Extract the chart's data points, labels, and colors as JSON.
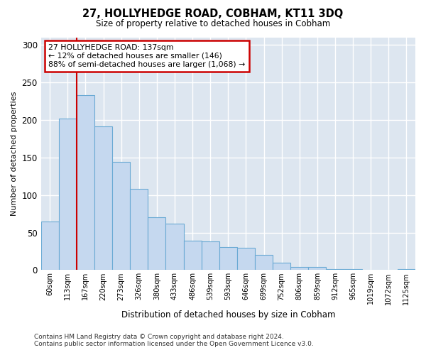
{
  "title": "27, HOLLYHEDGE ROAD, COBHAM, KT11 3DQ",
  "subtitle": "Size of property relative to detached houses in Cobham",
  "xlabel": "Distribution of detached houses by size in Cobham",
  "ylabel": "Number of detached properties",
  "bin_labels": [
    "60sqm",
    "113sqm",
    "167sqm",
    "220sqm",
    "273sqm",
    "326sqm",
    "380sqm",
    "433sqm",
    "486sqm",
    "539sqm",
    "593sqm",
    "646sqm",
    "699sqm",
    "752sqm",
    "806sqm",
    "859sqm",
    "912sqm",
    "965sqm",
    "1019sqm",
    "1072sqm",
    "1125sqm"
  ],
  "bar_heights": [
    65,
    202,
    233,
    191,
    144,
    108,
    70,
    62,
    39,
    38,
    31,
    30,
    20,
    10,
    4,
    4,
    1,
    1,
    0,
    0,
    1
  ],
  "bar_color": "#c5d8ef",
  "bar_edgecolor": "#6aaad4",
  "ylim": [
    0,
    310
  ],
  "yticks": [
    0,
    50,
    100,
    150,
    200,
    250,
    300
  ],
  "red_line_x": 1.5,
  "marker_label": "27 HOLLYHEDGE ROAD: 137sqm",
  "annotation_line1": "← 12% of detached houses are smaller (146)",
  "annotation_line2": "88% of semi-detached houses are larger (1,068) →",
  "annotation_box_color": "#ffffff",
  "annotation_box_edgecolor": "#cc0000",
  "red_line_color": "#cc0000",
  "footer_line1": "Contains HM Land Registry data © Crown copyright and database right 2024.",
  "footer_line2": "Contains public sector information licensed under the Open Government Licence v3.0.",
  "fig_background": "#ffffff",
  "plot_background": "#dde6f0"
}
